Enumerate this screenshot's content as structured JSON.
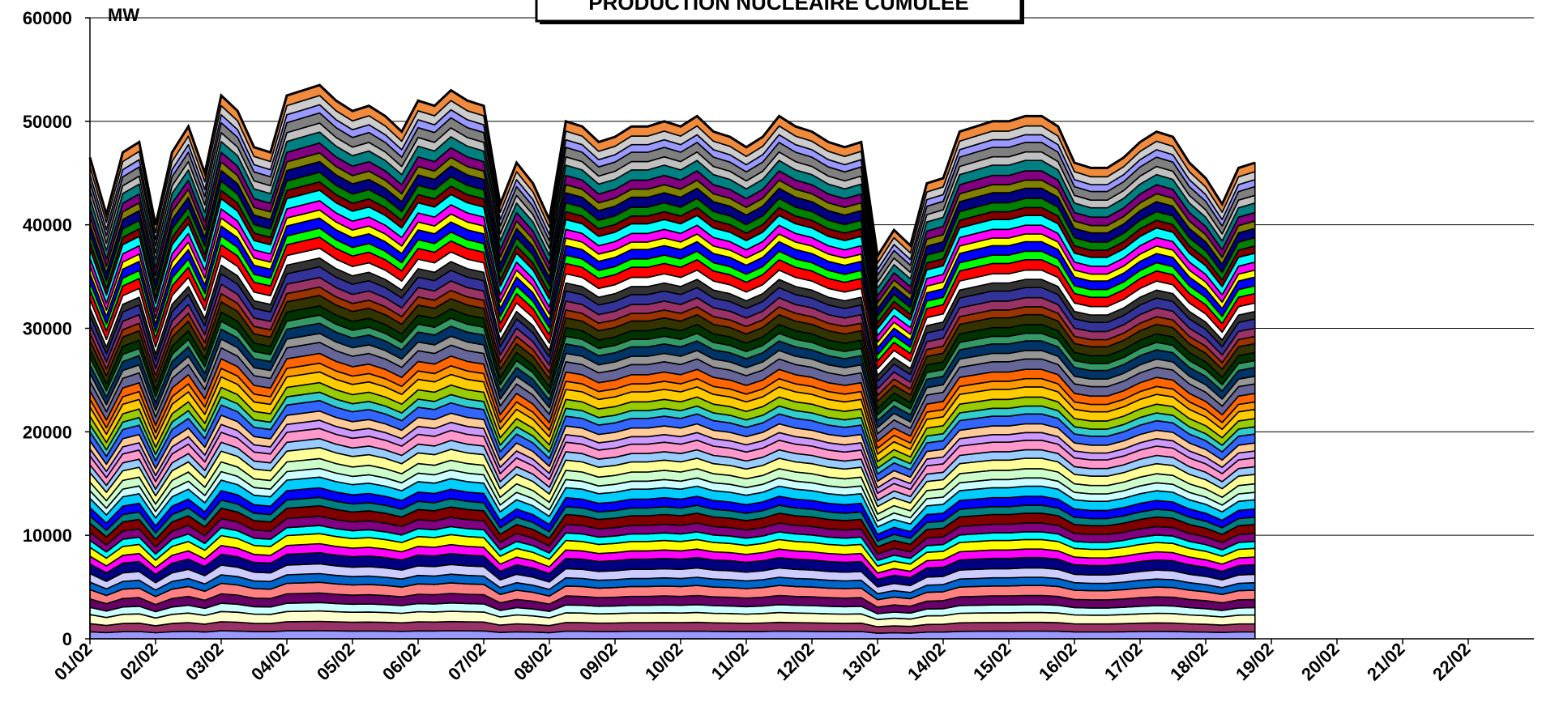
{
  "chart_data": {
    "type": "area",
    "stacked": true,
    "title": "PRODUCTION NUCLEAIRE CUMULEE",
    "ylabel": "MW",
    "xlabel": "",
    "ylim": [
      0,
      60000
    ],
    "yticks": [
      0,
      10000,
      20000,
      30000,
      40000,
      50000,
      60000
    ],
    "ytick_labels": [
      "0",
      "10000",
      "20000",
      "30000",
      "40000",
      "50000",
      "60000"
    ],
    "grid": "horizontal",
    "legend": "none",
    "categories": [
      "01/02",
      "02/02",
      "03/02",
      "04/02",
      "05/02",
      "06/02",
      "07/02",
      "08/02",
      "09/02",
      "10/02",
      "11/02",
      "12/02",
      "13/02",
      "14/02",
      "15/02",
      "16/02",
      "17/02",
      "18/02",
      "19/02",
      "20/02",
      "21/02",
      "22/02"
    ],
    "x_points_per_day": 4,
    "total_mw": [
      46500,
      41000,
      47000,
      48000,
      40000,
      47000,
      49500,
      45000,
      52500,
      51000,
      47500,
      47000,
      52500,
      53000,
      53500,
      52000,
      51000,
      51500,
      50500,
      49000,
      52000,
      51500,
      53000,
      52000,
      51500,
      42000,
      46000,
      44000,
      40500,
      50000,
      49500,
      48000,
      48500,
      49500,
      49500,
      50000,
      49500,
      50500,
      49000,
      48500,
      47500,
      48500,
      50500,
      49500,
      49000,
      48000,
      47500,
      48000,
      37000,
      39500,
      38000,
      44000,
      44500,
      49000,
      49500,
      50000,
      50000,
      50500,
      50500,
      49500,
      46000,
      45500,
      45500,
      46500,
      48000,
      49000,
      48500,
      46000,
      44500,
      42000,
      45500,
      46000
    ],
    "series_count": 58,
    "series_colors": [
      "#9999ff",
      "#993366",
      "#ffffcc",
      "#ccffff",
      "#660066",
      "#ff8080",
      "#0066cc",
      "#ccccff",
      "#000080",
      "#ff00ff",
      "#ffff00",
      "#00ffff",
      "#800080",
      "#800000",
      "#008080",
      "#0000ff",
      "#00ccff",
      "#ccffff",
      "#ccffcc",
      "#ffff99",
      "#99ccff",
      "#ff99cc",
      "#cc99ff",
      "#ffcc99",
      "#3366ff",
      "#33cccc",
      "#99cc00",
      "#ffcc00",
      "#ff9900",
      "#ff6600",
      "#666699",
      "#969696",
      "#003366",
      "#339966",
      "#003300",
      "#333300",
      "#993300",
      "#993366",
      "#333399",
      "#333333",
      "#ffffff",
      "#ff0000",
      "#00ff00",
      "#0000ff",
      "#ffff00",
      "#ff00ff",
      "#00ffff",
      "#800000",
      "#008000",
      "#000080",
      "#808000",
      "#800080",
      "#008080",
      "#c0c0c0",
      "#808080",
      "#9999ff",
      "#cccccc",
      "#f08a3c"
    ]
  }
}
